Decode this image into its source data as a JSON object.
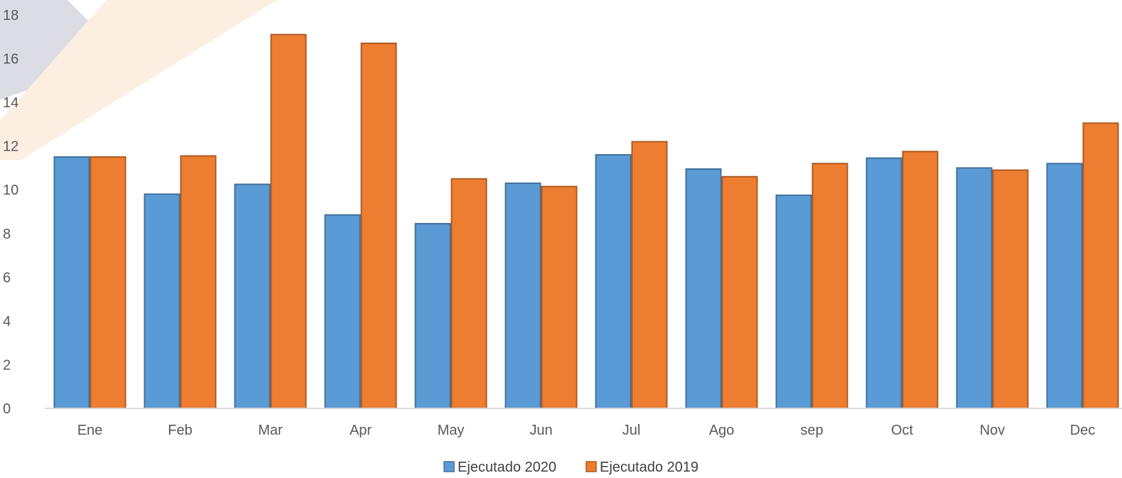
{
  "chart_data": {
    "type": "bar",
    "categories": [
      "Ene",
      "Feb",
      "Mar",
      "Apr",
      "May",
      "Jun",
      "Jul",
      "Ago",
      "sep",
      "Oct",
      "Nov",
      "Dec"
    ],
    "series": [
      {
        "name": "Ejecutado 2020",
        "color": "#5b9bd5",
        "border": "#41719c",
        "values": [
          11.5,
          9.8,
          10.25,
          8.85,
          8.45,
          10.3,
          11.6,
          10.95,
          9.75,
          11.45,
          11.0,
          11.2
        ]
      },
      {
        "name": "Ejecutado 2019",
        "color": "#ed7d31",
        "border": "#ae5a21",
        "values": [
          11.5,
          11.55,
          17.1,
          16.7,
          10.5,
          10.15,
          12.2,
          10.6,
          11.2,
          11.75,
          10.9,
          13.05
        ]
      }
    ],
    "yticks": [
      0,
      2,
      4,
      6,
      8,
      10,
      12,
      14,
      16,
      18
    ],
    "ylim": [
      0,
      18
    ],
    "grid": false,
    "legend_position": "bottom",
    "title": "",
    "xlabel": "",
    "ylabel": ""
  }
}
